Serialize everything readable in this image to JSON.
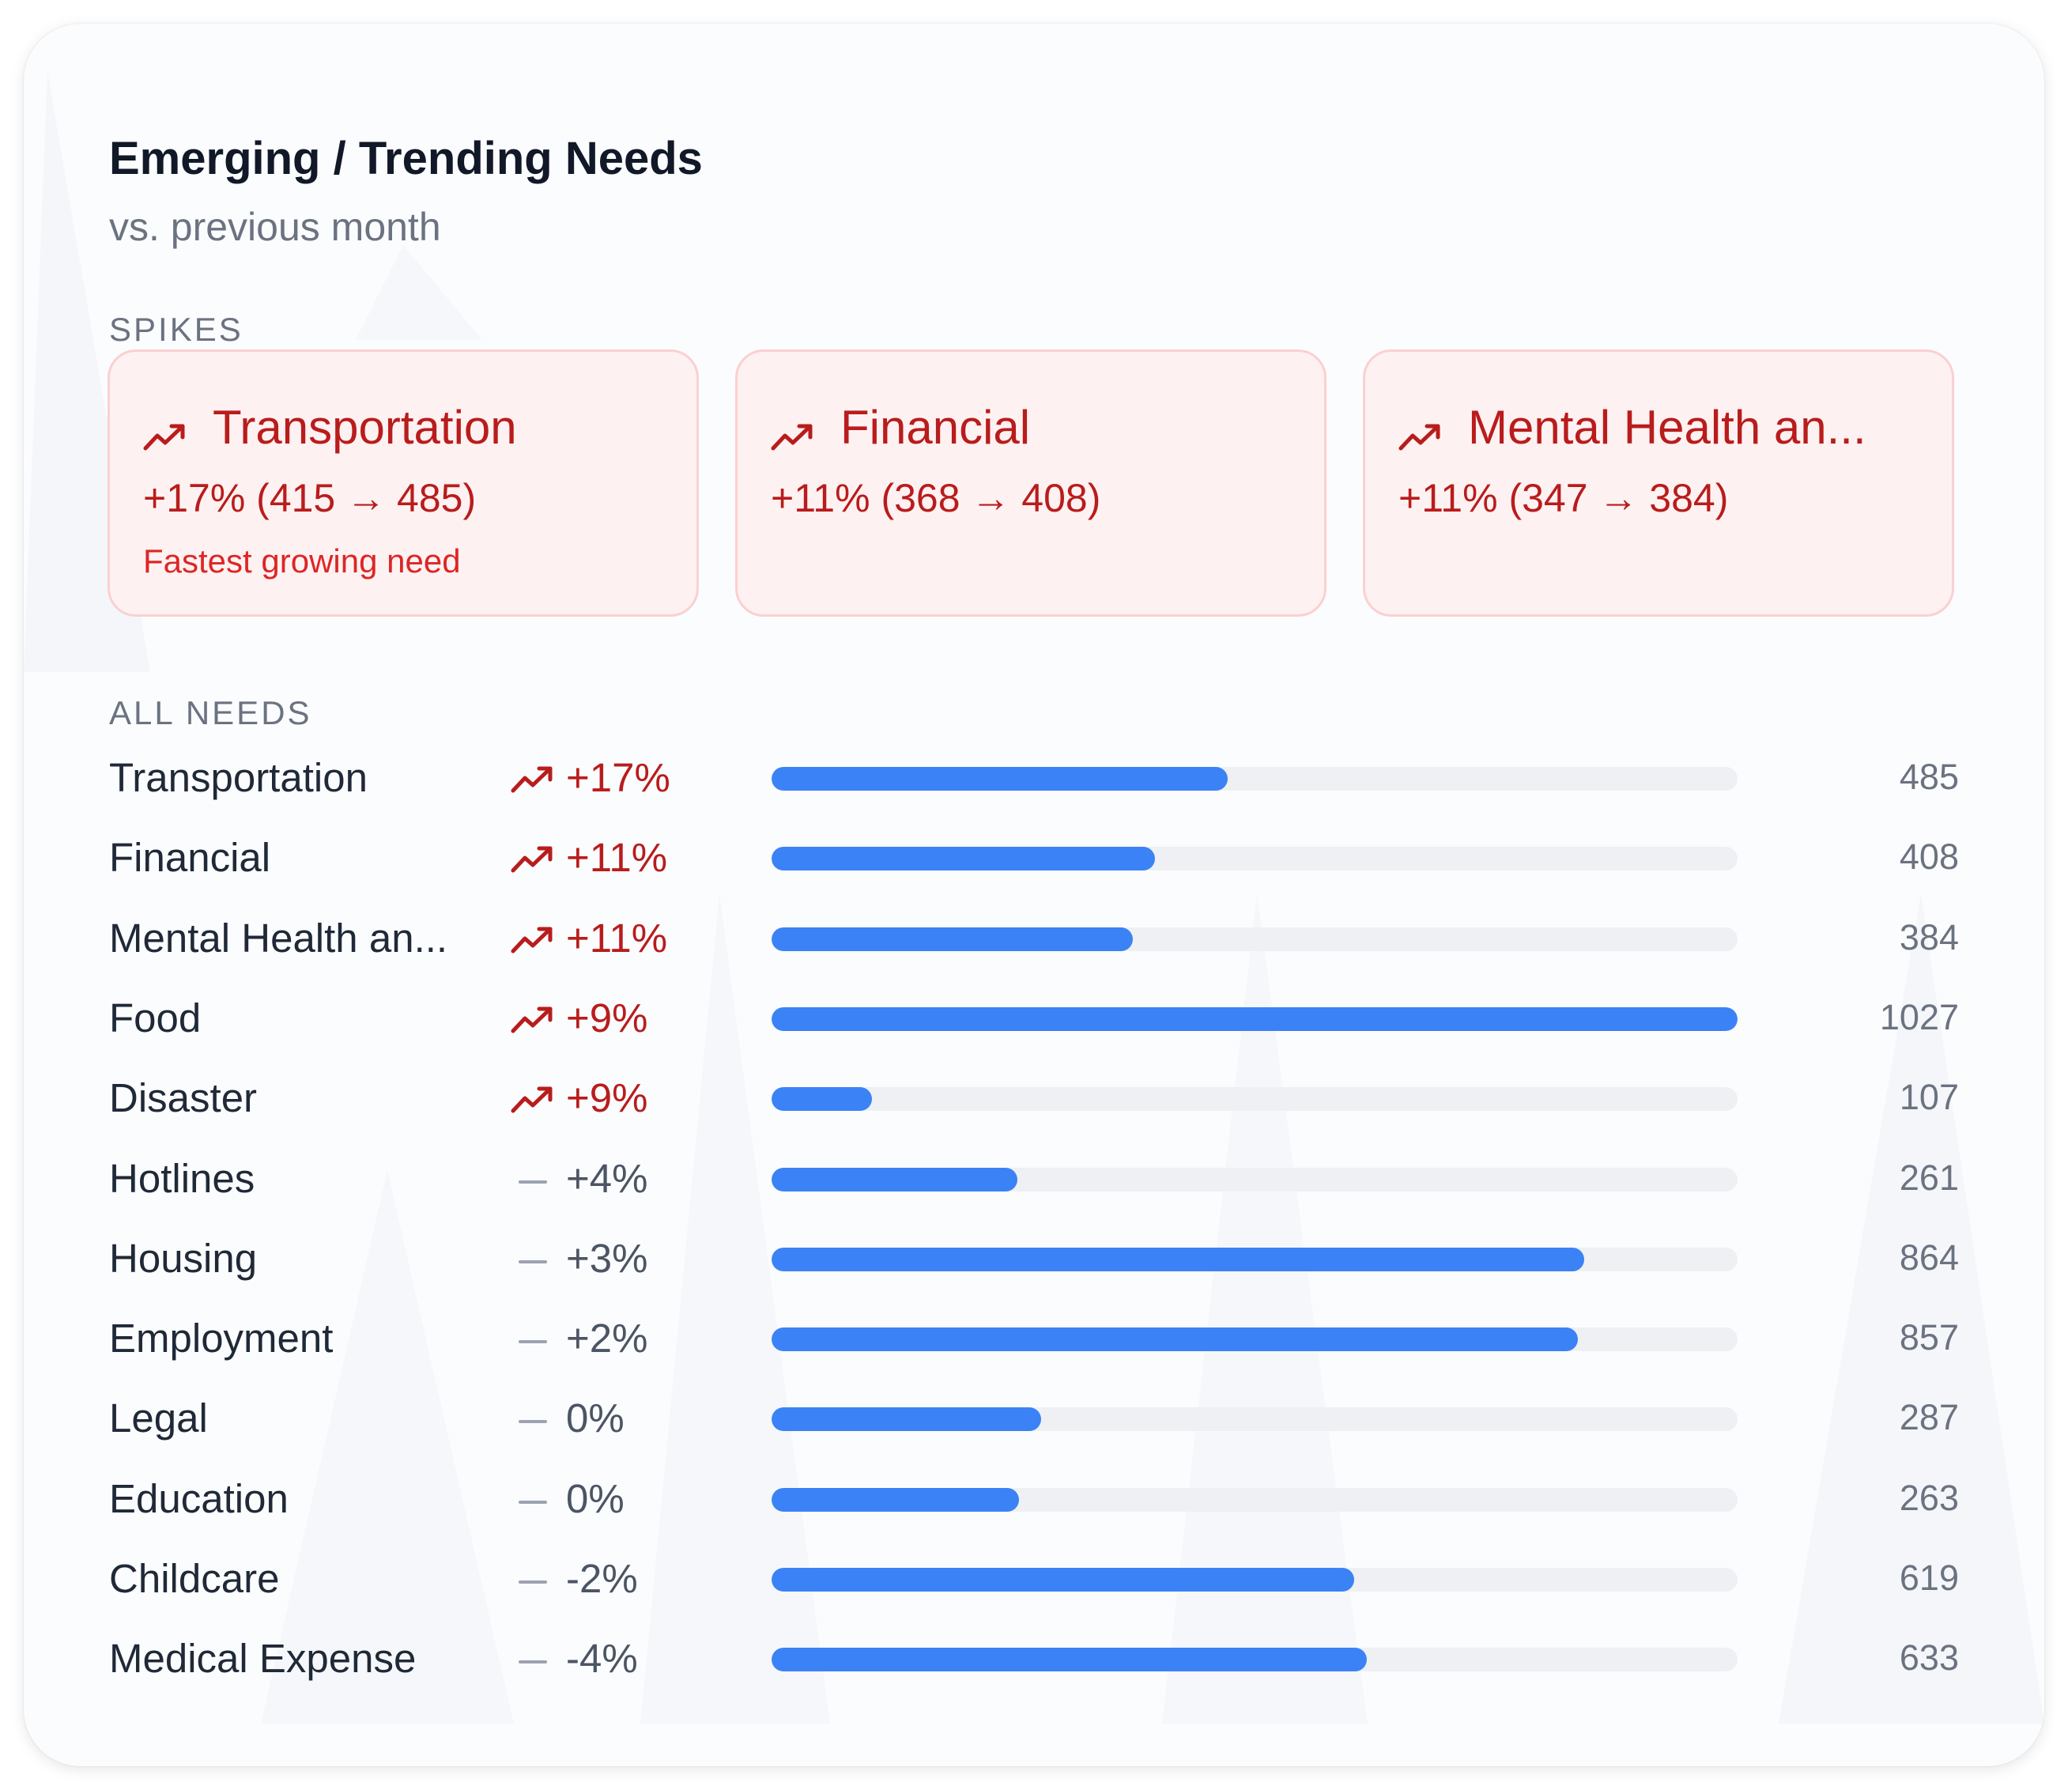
{
  "header": {
    "title": "Emerging / Trending Needs",
    "subtitle": "vs. previous month"
  },
  "colors": {
    "accent_bar": "#3b82f6",
    "up_trend": "#b91c1c",
    "spike_bg": "#fef1f1"
  },
  "spikes": {
    "label": "SPIKES",
    "items": [
      {
        "name": "Transportation",
        "change": "+17% (415 → 485)",
        "note": "Fastest growing need",
        "icon": "trending-up-icon"
      },
      {
        "name": "Financial",
        "change": "+11% (368 → 408)",
        "note": "",
        "icon": "trending-up-icon"
      },
      {
        "name": "Mental Health an...",
        "change": "+11% (347 → 384)",
        "note": "",
        "icon": "trending-up-icon"
      }
    ]
  },
  "all_needs": {
    "label": "ALL NEEDS",
    "max": 1027,
    "rows": [
      {
        "name": "Transportation",
        "change": "+17%",
        "trend": "up",
        "count": 485
      },
      {
        "name": "Financial",
        "change": "+11%",
        "trend": "up",
        "count": 408
      },
      {
        "name": "Mental Health an...",
        "change": "+11%",
        "trend": "up",
        "count": 384
      },
      {
        "name": "Food",
        "change": "+9%",
        "trend": "up",
        "count": 1027
      },
      {
        "name": "Disaster",
        "change": "+9%",
        "trend": "up",
        "count": 107
      },
      {
        "name": "Hotlines",
        "change": "+4%",
        "trend": "flat",
        "count": 261
      },
      {
        "name": "Housing",
        "change": "+3%",
        "trend": "flat",
        "count": 864
      },
      {
        "name": "Employment",
        "change": "+2%",
        "trend": "flat",
        "count": 857
      },
      {
        "name": "Legal",
        "change": "0%",
        "trend": "flat",
        "count": 287
      },
      {
        "name": "Education",
        "change": "0%",
        "trend": "flat",
        "count": 263
      },
      {
        "name": "Childcare",
        "change": "-2%",
        "trend": "flat",
        "count": 619
      },
      {
        "name": "Medical Expense",
        "change": "-4%",
        "trend": "flat",
        "count": 633
      }
    ]
  }
}
